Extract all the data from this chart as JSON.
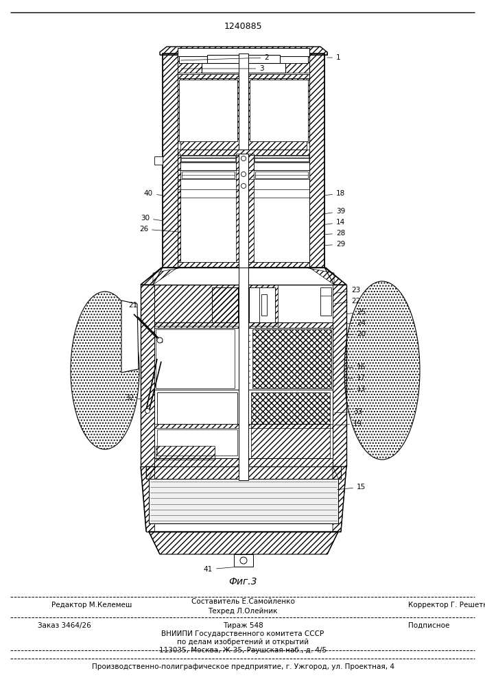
{
  "patent_number": "1240885",
  "fig_label": "Фиг.3",
  "bg": "#ffffff",
  "footer": {
    "col1": "Редактор М.Келемеш",
    "col2a": "Составитель Е.Самойленко",
    "col2b": "Техред Л.Олейник",
    "col3": "Корректор Г. Решетник",
    "order": "Заказ 3464/26",
    "tirazh": "Тираж 548",
    "podp": "Подписное",
    "vn1": "ВНИИПИ Государственного комитета СССР",
    "vn2": "по делам изобретений и открытий",
    "vn3": "113035, Москва, Ж-35, Раушская наб., д. 4/5",
    "prod": "Производственно-полиграфическое предприятие, г. Ужгород, ул. Проектная, 4"
  }
}
